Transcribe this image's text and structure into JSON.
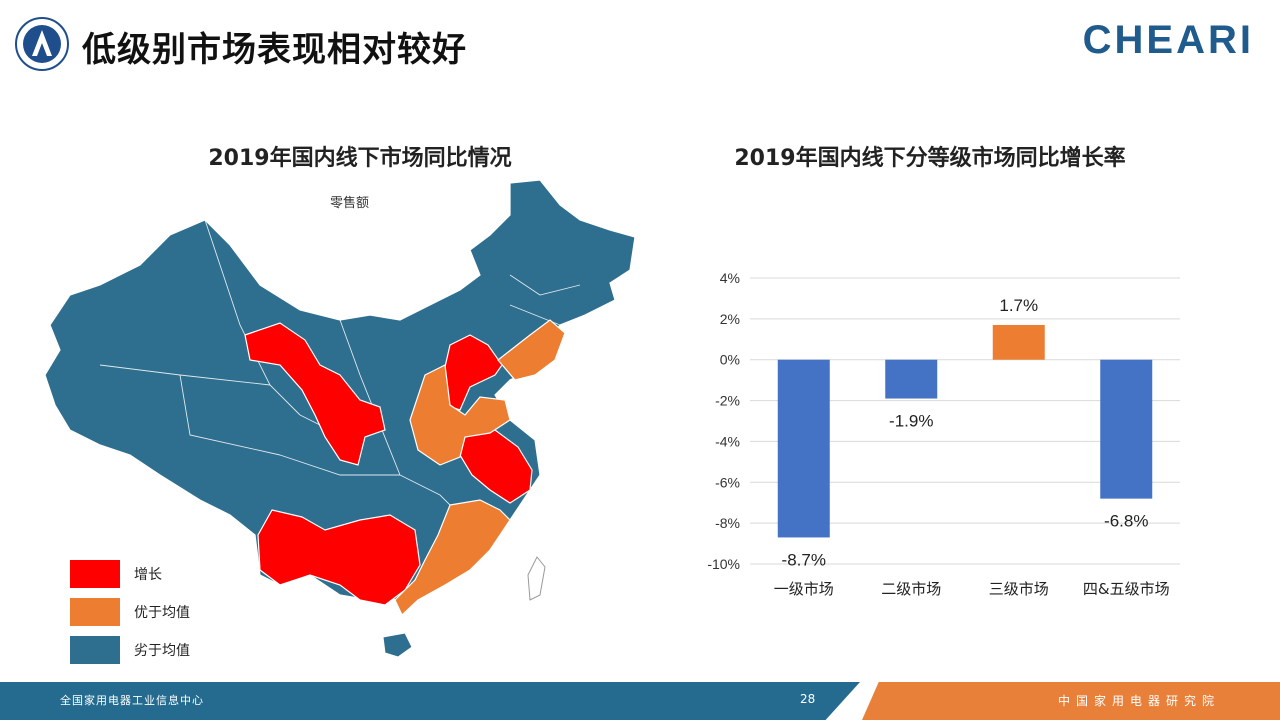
{
  "header": {
    "title": "低级别市场表现相对较好",
    "brand": "CHEARI"
  },
  "map": {
    "title": "2019年国内线下市场同比情况",
    "subtitle": "零售额",
    "legend": [
      {
        "label": "增长",
        "color": "#ff0000"
      },
      {
        "label": "优于均值",
        "color": "#ed7d31"
      },
      {
        "label": "劣于均值",
        "color": "#2e6e8e"
      }
    ]
  },
  "chart_data": {
    "type": "bar",
    "title": "2019年国内线下分等级市场同比增长率",
    "categories": [
      "一级市场",
      "二级市场",
      "三级市场",
      "四&五级市场"
    ],
    "values": [
      -8.7,
      -1.9,
      1.7,
      -6.8
    ],
    "value_labels": [
      "-8.7%",
      "-1.9%",
      "1.7%",
      "-6.8%"
    ],
    "colors": [
      "#4472c4",
      "#4472c4",
      "#ed7d31",
      "#4472c4"
    ],
    "ylim": [
      -10,
      4
    ],
    "yticks": [
      4,
      2,
      0,
      -2,
      -4,
      -6,
      -8,
      -10
    ],
    "ytick_labels": [
      "4%",
      "2%",
      "0%",
      "-2%",
      "-4%",
      "-6%",
      "-8%",
      "-10%"
    ],
    "grid": true
  },
  "footer": {
    "left": "全国家用电器工业信息中心",
    "page": "28",
    "right": "中国家用电器研究院"
  }
}
